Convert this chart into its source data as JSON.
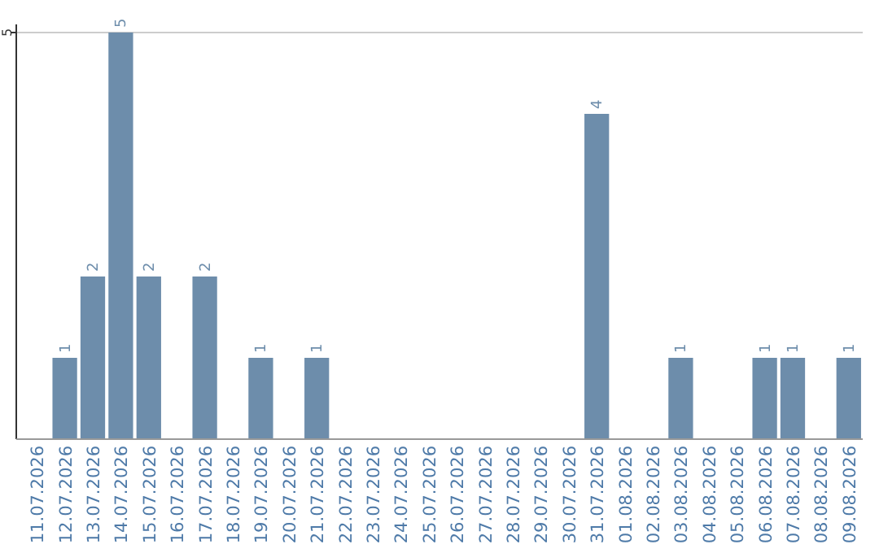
{
  "chart_data": {
    "type": "bar",
    "categories": [
      "11.07.2026",
      "12.07.2026",
      "13.07.2026",
      "14.07.2026",
      "15.07.2026",
      "16.07.2026",
      "17.07.2026",
      "18.07.2026",
      "19.07.2026",
      "20.07.2026",
      "21.07.2026",
      "22.07.2026",
      "23.07.2026",
      "24.07.2026",
      "25.07.2026",
      "26.07.2026",
      "27.07.2026",
      "28.07.2026",
      "29.07.2026",
      "30.07.2026",
      "31.07.2026",
      "01.08.2026",
      "02.08.2026",
      "03.08.2026",
      "04.08.2026",
      "05.08.2026",
      "06.08.2026",
      "07.08.2026",
      "08.08.2026",
      "09.08.2026"
    ],
    "values": [
      0,
      1,
      2,
      5,
      2,
      0,
      2,
      0,
      1,
      0,
      1,
      0,
      0,
      0,
      0,
      0,
      0,
      0,
      0,
      0,
      4,
      0,
      0,
      1,
      0,
      0,
      1,
      1,
      0,
      1
    ],
    "value_labels": [
      null,
      "1",
      "2",
      "5",
      "2",
      null,
      "2",
      null,
      "1",
      null,
      "1",
      null,
      null,
      null,
      null,
      null,
      null,
      null,
      null,
      null,
      "4",
      null,
      null,
      "1",
      null,
      null,
      "1",
      "1",
      null,
      "1"
    ],
    "color": "#6d8dab",
    "ylim": [
      0,
      5
    ],
    "yticks": [
      5
    ],
    "ref_lines": [
      {
        "axis": "y",
        "value": 5,
        "color": "#cccccc"
      }
    ]
  }
}
